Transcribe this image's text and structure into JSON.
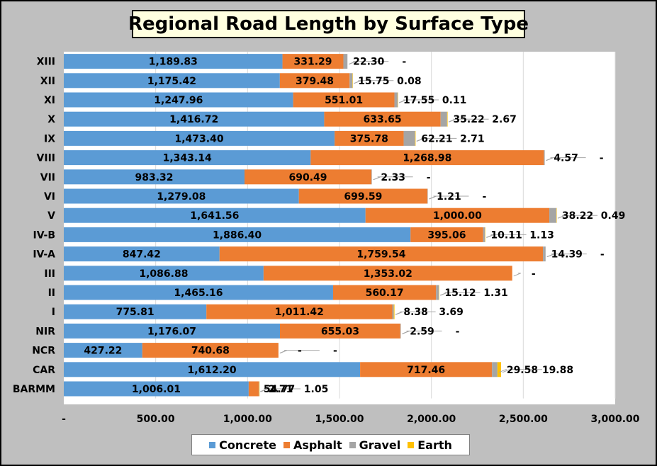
{
  "title": "Regional Road Length by Surface Type",
  "chart_data": {
    "type": "bar",
    "orientation": "horizontal",
    "stacked": true,
    "title": "Regional Road Length by Surface Type",
    "xlim": [
      0,
      3000
    ],
    "x_ticks": [
      "-",
      "500.00",
      "1,000.00",
      "1,500.00",
      "2,000.00",
      "2,500.00",
      "3,000.00"
    ],
    "grid": true,
    "legend_position": "bottom",
    "categories": [
      "XIII",
      "XII",
      "XI",
      "X",
      "IX",
      "VIII",
      "VII",
      "VI",
      "V",
      "IV-B",
      "IV-A",
      "III",
      "II",
      "I",
      "NIR",
      "NCR",
      "CAR",
      "BARMM"
    ],
    "series": [
      {
        "name": "Concrete",
        "color": "#5b9bd5",
        "values": [
          1189.83,
          1175.42,
          1247.96,
          1416.72,
          1473.4,
          1343.14,
          983.32,
          1279.08,
          1641.56,
          1886.4,
          847.42,
          1086.88,
          1465.16,
          775.81,
          1176.07,
          427.22,
          1612.2,
          1006.01
        ],
        "labels": [
          "1,189.83",
          "1,175.42",
          "1,247.96",
          "1,416.72",
          "1,473.40",
          "1,343.14",
          "983.32",
          "1,279.08",
          "1,641.56",
          "1,886.40",
          "847.42",
          "1,086.88",
          "1,465.16",
          "775.81",
          "1,176.07",
          "427.22",
          "1,612.20",
          "1,006.01"
        ]
      },
      {
        "name": "Asphalt",
        "color": "#ed7d31",
        "values": [
          331.29,
          379.48,
          551.01,
          633.65,
          375.78,
          1268.98,
          690.49,
          699.59,
          1000.0,
          395.06,
          1759.54,
          1353.02,
          560.17,
          1011.42,
          655.03,
          740.68,
          717.46,
          54.77
        ],
        "labels": [
          "331.29",
          "379.48",
          "551.01",
          "633.65",
          "375.78",
          "1,268.98",
          "690.49",
          "699.59",
          "1,000.00",
          "395.06",
          "1,759.54",
          "1,353.02",
          "560.17",
          "1,011.42",
          "655.03",
          "740.68",
          "717.46",
          "54.77"
        ]
      },
      {
        "name": "Gravel",
        "color": "#a5a5a5",
        "values": [
          22.3,
          15.75,
          17.55,
          35.22,
          62.21,
          4.57,
          2.33,
          1.21,
          38.22,
          10.11,
          14.39,
          0,
          15.12,
          8.38,
          2.59,
          0,
          29.58,
          2.71
        ],
        "labels": [
          "22.30",
          "15.75",
          "17.55",
          "35.22",
          "62.21",
          "4.57",
          "2.33",
          "1.21",
          "38.22",
          "10.11",
          "14.39",
          "-",
          "15.12",
          "8.38",
          "2.59",
          "-",
          "29.58",
          "2.71"
        ]
      },
      {
        "name": "Earth",
        "color": "#ffc000",
        "values": [
          0,
          0.08,
          0.11,
          2.67,
          2.71,
          0,
          0,
          0,
          0.49,
          1.13,
          0,
          0,
          1.31,
          3.69,
          0,
          0,
          19.88,
          1.05
        ],
        "labels": [
          "-",
          "0.08",
          "0.11",
          "2.67",
          "2.71",
          "-",
          "-",
          "-",
          "0.49",
          "1.13",
          "-",
          "",
          "1.31",
          "3.69",
          "-",
          "-",
          "19.88",
          "1.05"
        ]
      }
    ]
  }
}
